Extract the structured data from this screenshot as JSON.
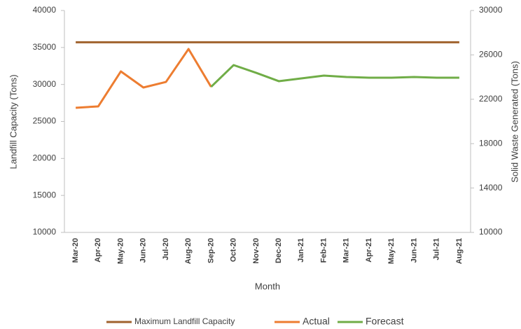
{
  "chart_data": {
    "type": "line",
    "x_label": "Month",
    "y_label": "Landfill Capacity (Tons)",
    "y2_label": "Solid Waste Generated (Tons)",
    "categories": [
      "Mar-20",
      "Apr-20",
      "May-20",
      "Jun-20",
      "Jul-20",
      "Aug-20",
      "Sep-20",
      "Oct-20",
      "Nov-20",
      "Dec-20",
      "Jan-21",
      "Feb-21",
      "Mar-21",
      "Apr-21",
      "May-21",
      "Jun-21",
      "Jul-21",
      "Aug-21"
    ],
    "series": [
      {
        "name": "Maximum Landfill Capacity",
        "color": "#A0622D",
        "axis": "y",
        "values": [
          35700,
          35700,
          35700,
          35700,
          35700,
          35700,
          35700,
          35700,
          35700,
          35700,
          35700,
          35700,
          35700,
          35700,
          35700,
          35700,
          35700,
          35700
        ]
      },
      {
        "name": "Actual",
        "color": "#ED7D31",
        "axis": "y2",
        "values": [
          21230,
          21360,
          24510,
          23060,
          23560,
          26530,
          23120,
          null,
          null,
          null,
          null,
          null,
          null,
          null,
          null,
          null,
          null,
          null
        ]
      },
      {
        "name": "Forecast",
        "color": "#70AD47",
        "axis": "y2",
        "values": [
          null,
          null,
          null,
          null,
          null,
          null,
          23120,
          25080,
          24380,
          23630,
          23880,
          24130,
          24010,
          23940,
          23940,
          24010,
          23940,
          23940
        ]
      }
    ],
    "ylim": [
      10000,
      40000
    ],
    "yticks": [
      10000,
      15000,
      20000,
      25000,
      30000,
      35000,
      40000
    ],
    "y2lim": [
      10000,
      30000
    ],
    "y2ticks": [
      10000,
      14000,
      18000,
      22000,
      26000,
      30000
    ],
    "legend": "bottom",
    "grid": false
  }
}
